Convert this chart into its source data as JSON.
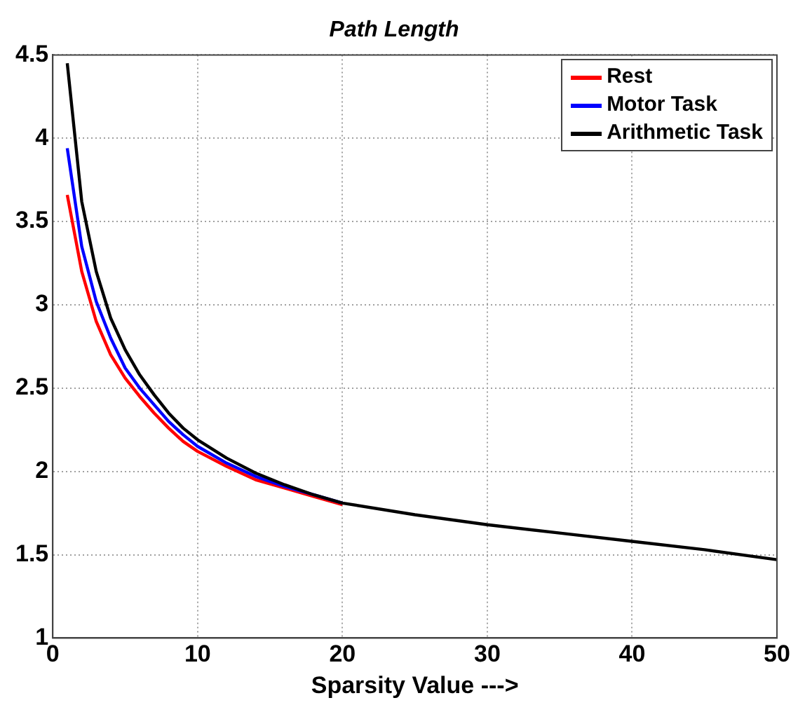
{
  "chart_data": {
    "type": "line",
    "title": "Path Length",
    "xlabel": "Sparsity Value --->",
    "x": [
      1,
      2,
      3,
      4,
      5,
      6,
      7,
      8,
      9,
      10,
      12,
      14,
      16,
      18,
      20,
      25,
      30,
      35,
      40,
      45,
      50
    ],
    "series": [
      {
        "name": "Rest",
        "color": "#ff0000",
        "values": [
          3.66,
          3.2,
          2.9,
          2.7,
          2.56,
          2.45,
          2.35,
          2.26,
          2.18,
          2.12,
          2.03,
          1.95,
          1.9,
          1.85,
          1.8,
          null,
          null,
          null,
          null,
          null,
          null
        ]
      },
      {
        "name": "Motor Task",
        "color": "#0000ff",
        "values": [
          3.94,
          3.35,
          3.02,
          2.8,
          2.62,
          2.5,
          2.4,
          2.3,
          2.22,
          2.15,
          2.05,
          1.97,
          1.91,
          1.86,
          1.81,
          null,
          null,
          null,
          null,
          null,
          null
        ]
      },
      {
        "name": "Arithmetic Task",
        "color": "#000000",
        "values": [
          4.45,
          3.62,
          3.2,
          2.92,
          2.73,
          2.58,
          2.46,
          2.35,
          2.26,
          2.19,
          2.08,
          1.99,
          1.92,
          1.86,
          1.81,
          1.74,
          1.68,
          1.63,
          1.58,
          1.53,
          1.47
        ]
      }
    ],
    "xlim": [
      0,
      50
    ],
    "xticks": [
      0,
      10,
      20,
      30,
      40,
      50
    ],
    "ylim": [
      1,
      4.5
    ],
    "yticks": [
      1,
      1.5,
      2,
      2.5,
      3,
      3.5,
      4,
      4.5
    ],
    "grid": true,
    "legend": "top right",
    "marker": "none",
    "line_style": "solid"
  }
}
